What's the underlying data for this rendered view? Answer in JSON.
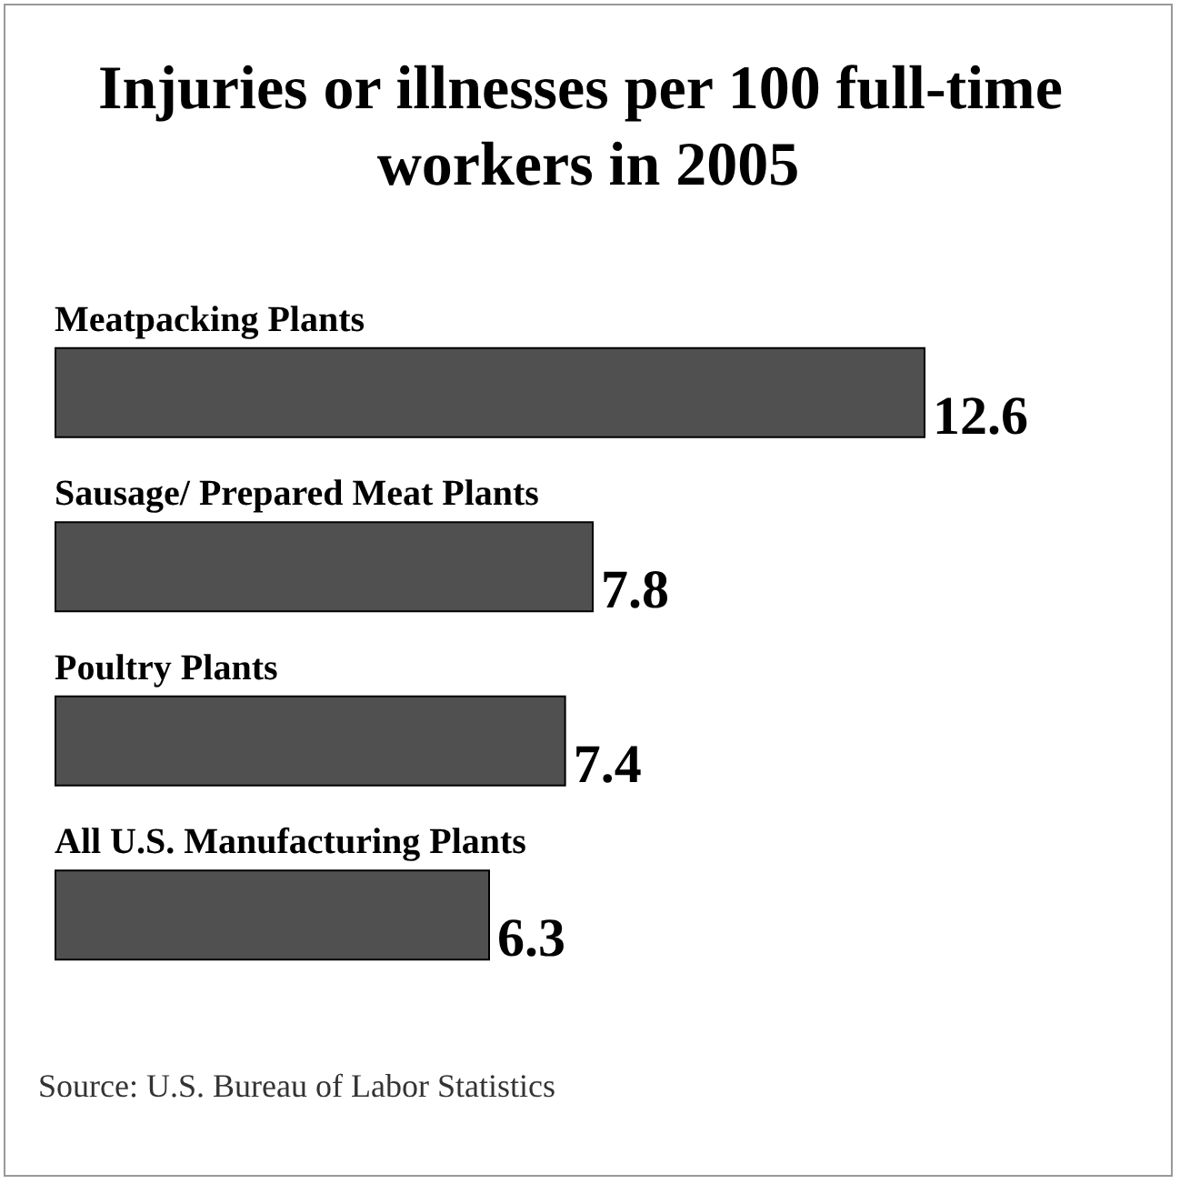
{
  "chart_data": {
    "type": "bar",
    "orientation": "horizontal",
    "title": "Injuries or illnesses per 100 full-time workers in 2005",
    "categories": [
      "Meatpacking Plants",
      "Sausage/ Prepared Meat Plants",
      "Poultry Plants",
      "All U.S. Manufacturing Plants"
    ],
    "values": [
      12.6,
      7.8,
      7.4,
      6.3
    ],
    "color": "#505050",
    "data_labels": true,
    "annotations": [
      "Source: U.S. Bureau of Labor Statistics"
    ]
  }
}
